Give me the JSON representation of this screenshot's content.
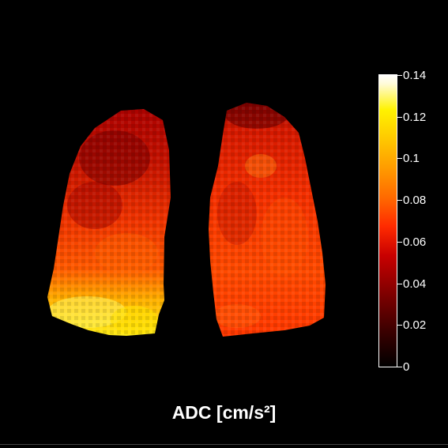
{
  "image": {
    "subject": "lung ADC parametric map",
    "background_color": "#000000",
    "colormap": "hot"
  },
  "colorbar": {
    "ticks": [
      "0.14",
      "0.12",
      "0.1",
      "0.08",
      "0.06",
      "0.04",
      "0.02",
      "0"
    ],
    "min": 0,
    "max": 0.14
  },
  "caption": "ADC [cm/s²]"
}
